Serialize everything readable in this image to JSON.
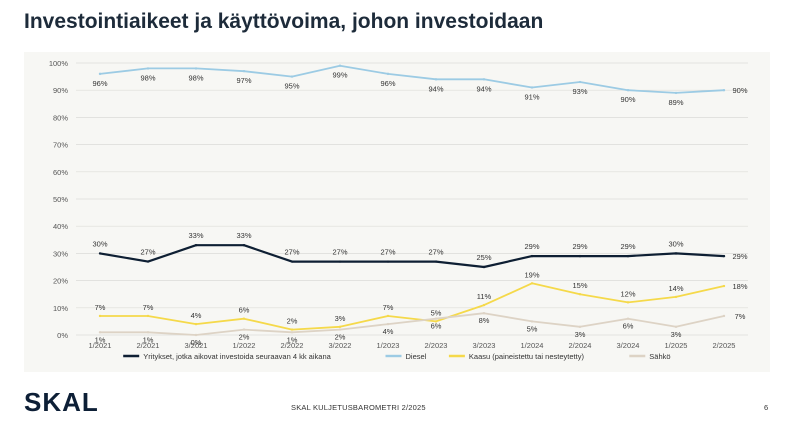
{
  "slide": {
    "title": "Investointiaikeet ja käyttövoima, johon investoidaan",
    "logo": "SKAL",
    "footer": "SKAL KULJETUSBAROMETRI 2/2025",
    "page_number": "6"
  },
  "chart_data": {
    "type": "line",
    "title": "",
    "xlabel": "",
    "ylabel": "",
    "ylim": [
      0,
      100
    ],
    "yticks": [
      "0%",
      "10%",
      "20%",
      "30%",
      "40%",
      "50%",
      "60%",
      "70%",
      "80%",
      "90%",
      "100%"
    ],
    "grid": true,
    "legend_position": "bottom",
    "categories": [
      "1/2021",
      "2/2021",
      "3/2021",
      "1/2022",
      "2/2022",
      "3/2022",
      "1/2023",
      "2/2023",
      "3/2023",
      "1/2024",
      "2/2024",
      "3/2024",
      "1/2025",
      "2/2025"
    ],
    "series": [
      {
        "name": "Yritykset, jotka aikovat investoida seuraavan 4 kk aikana",
        "color": "#0e1f33",
        "values": [
          30,
          27,
          33,
          33,
          27,
          27,
          27,
          27,
          25,
          29,
          29,
          29,
          30,
          29
        ],
        "labels": [
          "30%",
          "27%",
          "33%",
          "33%",
          "27%",
          "27%",
          "27%",
          "27%",
          "25%",
          "29%",
          "29%",
          "29%",
          "30%",
          "29%"
        ]
      },
      {
        "name": "Diesel",
        "color": "#9ccbe4",
        "values": [
          96,
          98,
          98,
          97,
          95,
          99,
          96,
          94,
          94,
          91,
          93,
          90,
          89,
          90
        ],
        "labels": [
          "96%",
          "98%",
          "98%",
          "97%",
          "95%",
          "99%",
          "96%",
          "94%",
          "94%",
          "91%",
          "93%",
          "90%",
          "89%",
          "90%"
        ]
      },
      {
        "name": "Kaasu (paineistettu tai nesteytetty)",
        "color": "#f5d94a",
        "values": [
          7,
          7,
          4,
          6,
          2,
          3,
          7,
          5,
          11,
          19,
          15,
          12,
          14,
          18
        ],
        "labels": [
          "7%",
          "7%",
          "4%",
          "6%",
          "2%",
          "3%",
          "7%",
          "5%",
          "11%",
          "19%",
          "15%",
          "12%",
          "14%",
          "18%"
        ]
      },
      {
        "name": "Sähkö",
        "color": "#ddd3c5",
        "values": [
          1,
          1,
          0,
          2,
          1,
          2,
          4,
          6,
          8,
          5,
          3,
          6,
          3,
          7
        ],
        "labels": [
          "1%",
          "1%",
          "0%",
          "2%",
          "1%",
          "2%",
          "4%",
          "6%",
          "8%",
          "5%",
          "3%",
          "6%",
          "3%",
          "7%"
        ]
      }
    ]
  }
}
